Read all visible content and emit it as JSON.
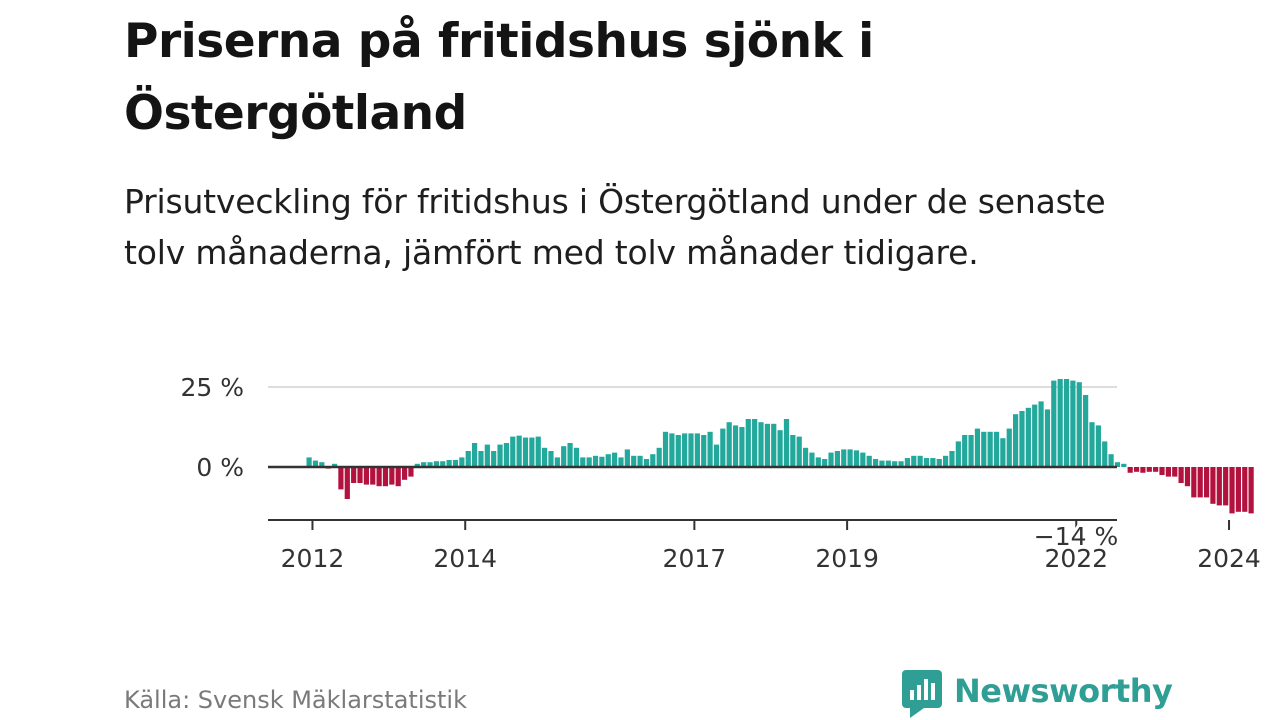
{
  "title": "Priserna på fritidshus sjönk i Östergötland",
  "subtitle": "Prisutveckling för fritidshus i Östergötland under de senaste tolv månaderna, jämfört med tolv månader tidigare.",
  "source": "Källa: Svensk Mäklarstatistik",
  "brand": {
    "name": "Newsworthy"
  },
  "colors": {
    "positive": "#23a89c",
    "negative": "#b3123e",
    "text": "#1a1a1a",
    "grid": "#dddddd",
    "axis": "#333333"
  },
  "chart_data": {
    "type": "bar",
    "title": "Priserna på fritidshus sjönk i Östergötland",
    "xlabel": "",
    "ylabel": "",
    "unit": "%",
    "ylim": [
      -16,
      27
    ],
    "x_start": "2011-12",
    "x_ticks": [
      "2012",
      "2014",
      "2017",
      "2019",
      "2022",
      "2024"
    ],
    "x_tick_months": [
      1,
      25,
      61,
      85,
      121,
      145
    ],
    "y_ticks": [
      {
        "value": 25,
        "label": "25 %"
      },
      {
        "value": 0,
        "label": "0 %"
      }
    ],
    "last_value_label": "−14 %",
    "values": [
      3,
      2,
      1.5,
      -0.5,
      1,
      -7,
      -10,
      -5,
      -5,
      -5.5,
      -5.5,
      -6,
      -6,
      -5.5,
      -6,
      -4,
      -3,
      1,
      1.5,
      1.5,
      1.8,
      1.8,
      2.2,
      2.2,
      3,
      5,
      7.5,
      5,
      7,
      5,
      7,
      7.5,
      9.5,
      9.8,
      9.2,
      9.2,
      9.5,
      6,
      5,
      3,
      6.5,
      7.5,
      6,
      3,
      3,
      3.5,
      3.2,
      4,
      4.5,
      3,
      5.5,
      3.5,
      3.5,
      2.5,
      4,
      6,
      11,
      10.5,
      10,
      10.5,
      10.5,
      10.5,
      10,
      11,
      7,
      12,
      14,
      13,
      12.5,
      15,
      15,
      14,
      13.5,
      13.5,
      11.5,
      15,
      10,
      9.5,
      6,
      4.5,
      3,
      2.5,
      4.5,
      5,
      5.5,
      5.5,
      5.2,
      4.5,
      3.5,
      2.5,
      2,
      2,
      1.8,
      1.8,
      2.8,
      3.5,
      3.5,
      2.8,
      2.8,
      2.5,
      3.5,
      5,
      8,
      10,
      10,
      12,
      11,
      11,
      11,
      9,
      12,
      16.5,
      17.5,
      18.5,
      19.5,
      20.5,
      18,
      27,
      27.5,
      27.5,
      27,
      26.5,
      22.5,
      14,
      13,
      8,
      4,
      1.5,
      1,
      -1.8,
      -1.5,
      -1.8,
      -1.5,
      -1.5,
      -2.5,
      -3,
      -3,
      -5,
      -6,
      -9.5,
      -9.5,
      -9.5,
      -11.5,
      -12,
      -12,
      -14.5,
      -14,
      -14,
      -14.5
    ]
  }
}
